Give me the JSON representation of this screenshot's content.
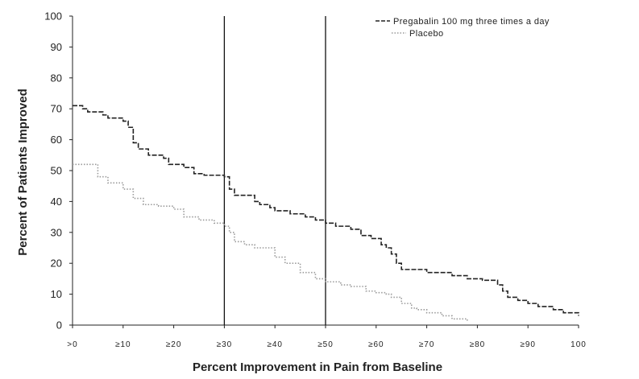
{
  "chart_data": {
    "type": "line",
    "ylabel": "Percent of Patients Improved",
    "xlabel": "Percent Improvement in Pain from Baseline",
    "xlim": [
      0,
      100
    ],
    "ylim": [
      0,
      100
    ],
    "y_ticks": [
      "0",
      "10",
      "20",
      "30",
      "40",
      "50",
      "60",
      "70",
      "80",
      "90",
      "100"
    ],
    "y_tick_values": [
      0,
      10,
      20,
      30,
      40,
      50,
      60,
      70,
      80,
      90,
      100
    ],
    "x_ticks": [
      ">0",
      "≥10",
      "≥20",
      "≥30",
      "≥40",
      "≥50",
      "≥60",
      "≥70",
      "≥80",
      "≥90",
      "100"
    ],
    "x_tick_values": [
      0,
      10,
      20,
      30,
      40,
      50,
      60,
      70,
      80,
      90,
      100
    ],
    "reference_lines_x": [
      30,
      50
    ],
    "legend_position": "top-right",
    "grid": false,
    "series": [
      {
        "name": "Pregabalin 100 mg three times a day",
        "style": "dashed",
        "color": "#222222",
        "x": [
          0,
          2,
          3,
          6,
          7,
          10,
          11,
          12,
          13,
          15,
          18,
          19,
          22,
          24,
          26,
          30,
          31,
          32,
          36,
          37,
          39,
          40,
          43,
          46,
          48,
          50,
          52,
          55,
          57,
          59,
          61,
          62,
          63,
          64,
          65,
          70,
          75,
          78,
          80,
          81,
          84,
          85,
          86,
          88,
          90,
          92,
          95,
          97,
          100
        ],
        "values": [
          71,
          70,
          69,
          68,
          67,
          66,
          64,
          59,
          57,
          55,
          54,
          52,
          51,
          49,
          48.5,
          48,
          44,
          42,
          40,
          39,
          38,
          37,
          36,
          35,
          34,
          33,
          32,
          31,
          29,
          28,
          26,
          25,
          23,
          20,
          18,
          17,
          16,
          15,
          15,
          14.5,
          13,
          11,
          9,
          8,
          7,
          6,
          5,
          4,
          3
        ]
      },
      {
        "name": "Placebo",
        "style": "dotted",
        "color": "#9a9a9a",
        "x": [
          0,
          2,
          5,
          7,
          10,
          12,
          14,
          17,
          20,
          22,
          25,
          28,
          30,
          31,
          32,
          34,
          36,
          40,
          42,
          45,
          48,
          50,
          53,
          55,
          58,
          60,
          62,
          63,
          65,
          67,
          68,
          70,
          73,
          75,
          78
        ],
        "values": [
          52,
          52,
          48,
          46,
          44,
          41,
          39,
          38.5,
          37.5,
          35,
          34,
          33,
          32,
          30,
          27,
          26,
          25,
          22,
          20,
          17,
          15,
          14,
          13,
          12.5,
          11,
          10.5,
          10,
          9,
          7,
          5.5,
          5,
          4,
          3,
          2,
          1
        ]
      }
    ]
  }
}
